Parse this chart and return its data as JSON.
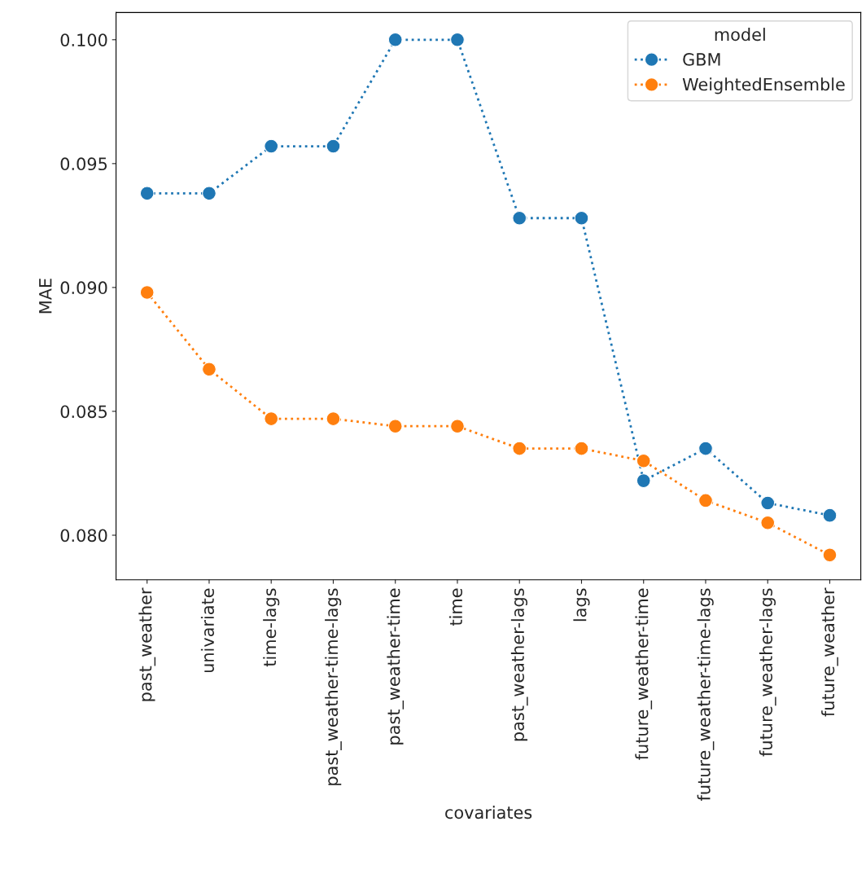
{
  "chart_data": {
    "type": "line",
    "xlabel": "covariates",
    "ylabel": "MAE",
    "legend_title": "model",
    "categories": [
      "past_weather",
      "univariate",
      "time-lags",
      "past_weather-time-lags",
      "past_weather-time",
      "time",
      "past_weather-lags",
      "lags",
      "future_weather-time",
      "future_weather-time-lags",
      "future_weather-lags",
      "future_weather"
    ],
    "series": [
      {
        "name": "GBM",
        "color": "#1f77b4",
        "values": [
          0.0938,
          0.0938,
          0.0957,
          0.0957,
          0.1,
          0.1,
          0.0928,
          0.0928,
          0.0822,
          0.0835,
          0.0813,
          0.0808
        ]
      },
      {
        "name": "WeightedEnsemble",
        "color": "#ff7f0e",
        "values": [
          0.0898,
          0.0867,
          0.0847,
          0.0847,
          0.0844,
          0.0844,
          0.0835,
          0.0835,
          0.083,
          0.0814,
          0.0805,
          0.0792
        ]
      }
    ],
    "ylim": [
      0.0782,
      0.1011
    ],
    "yticks": [
      {
        "value": 0.08,
        "label": "0.080"
      },
      {
        "value": 0.085,
        "label": "0.085"
      },
      {
        "value": 0.09,
        "label": "0.090"
      },
      {
        "value": 0.095,
        "label": "0.095"
      },
      {
        "value": 0.1,
        "label": "0.100"
      }
    ],
    "grid": false,
    "legend": "top right",
    "marker": "circle",
    "line_style": "dotted"
  }
}
